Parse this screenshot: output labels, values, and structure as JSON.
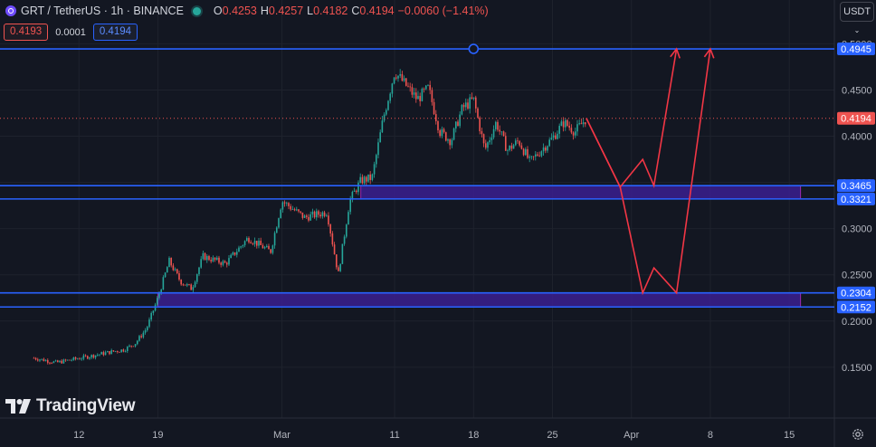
{
  "header": {
    "symbol": "GRT / TetherUS · 1h · BINANCE",
    "open_label": "O",
    "open": "0.4253",
    "high_label": "H",
    "high": "0.4257",
    "low_label": "L",
    "low": "0.4182",
    "close_label": "C",
    "close": "0.4194",
    "change": "−0.0060 (−1.41%)"
  },
  "trade": {
    "sell": "0.4193",
    "spread": "0.0001",
    "buy": "0.4194"
  },
  "currency_button": "USDT",
  "logo_text": "TradingView",
  "icons": {
    "symbol_logo": "grt-coin-icon",
    "market_status": "market-open-dot-icon",
    "currency": "chevron-down-icon",
    "settings": "gear-icon"
  },
  "colors": {
    "background": "#131722",
    "grid": "#1e222d",
    "up": "#26a69a",
    "down": "#ef5350",
    "level_line": "#2962ff",
    "zone_fill": "#3b1f8f",
    "projection": "#f23645",
    "price_line": "#ef5350"
  },
  "chart_data": {
    "type": "candlestick",
    "interval": "1h",
    "grid": true,
    "y_axis": {
      "ticks": [
        "0.5000",
        "0.4500",
        "0.4000",
        "0.3500",
        "0.3000",
        "0.2500",
        "0.2000",
        "0.1500"
      ],
      "tick_values": [
        0.5,
        0.45,
        0.4,
        0.35,
        0.3,
        0.25,
        0.2,
        0.15
      ],
      "range": [
        0.095,
        0.52
      ]
    },
    "x_axis": {
      "ticks": [
        "12",
        "19",
        "Mar",
        "11",
        "18",
        "25",
        "Apr",
        "8",
        "15"
      ],
      "dates": [
        "2024-02-12",
        "2024-02-19",
        "2024-03-01",
        "2024-03-11",
        "2024-03-18",
        "2024-03-25",
        "2024-04-01",
        "2024-04-08",
        "2024-04-15"
      ]
    },
    "price_path": [
      [
        "2024-02-08",
        0.16
      ],
      [
        "2024-02-10",
        0.155
      ],
      [
        "2024-02-13",
        0.162
      ],
      [
        "2024-02-15",
        0.167
      ],
      [
        "2024-02-16",
        0.169
      ],
      [
        "2024-02-17",
        0.176
      ],
      [
        "2024-02-18",
        0.192
      ],
      [
        "2024-02-19",
        0.225
      ],
      [
        "2024-02-20",
        0.265
      ],
      [
        "2024-02-21",
        0.243
      ],
      [
        "2024-02-22",
        0.235
      ],
      [
        "2024-02-23",
        0.27
      ],
      [
        "2024-02-25",
        0.262
      ],
      [
        "2024-02-27",
        0.29
      ],
      [
        "2024-02-29",
        0.275
      ],
      [
        "2024-03-01",
        0.33
      ],
      [
        "2024-03-03",
        0.312
      ],
      [
        "2024-03-05",
        0.318
      ],
      [
        "2024-03-06",
        0.25
      ],
      [
        "2024-03-07",
        0.33
      ],
      [
        "2024-03-08",
        0.352
      ],
      [
        "2024-03-09",
        0.355
      ],
      [
        "2024-03-10",
        0.42
      ],
      [
        "2024-03-11",
        0.47
      ],
      [
        "2024-03-12",
        0.455
      ],
      [
        "2024-03-13",
        0.44
      ],
      [
        "2024-03-14",
        0.452
      ],
      [
        "2024-03-15",
        0.405
      ],
      [
        "2024-03-16",
        0.395
      ],
      [
        "2024-03-17",
        0.43
      ],
      [
        "2024-03-18",
        0.44
      ],
      [
        "2024-03-19",
        0.385
      ],
      [
        "2024-03-20",
        0.415
      ],
      [
        "2024-03-21",
        0.385
      ],
      [
        "2024-03-22",
        0.395
      ],
      [
        "2024-03-23",
        0.372
      ],
      [
        "2024-03-24",
        0.385
      ],
      [
        "2024-03-25",
        0.398
      ],
      [
        "2024-03-26",
        0.415
      ],
      [
        "2024-03-27",
        0.405
      ],
      [
        "2024-03-28",
        0.4194
      ]
    ],
    "horizontal_levels": [
      0.4945,
      0.3465,
      0.3321,
      0.2304,
      0.2152
    ],
    "current_price": 0.4194,
    "zones": [
      {
        "from": "2024-03-08",
        "to": "2024-04-16",
        "top": 0.3465,
        "bottom": 0.3321
      },
      {
        "from": "2024-02-19",
        "to": "2024-04-16",
        "top": 0.2304,
        "bottom": 0.2152
      }
    ],
    "projection_paths": [
      [
        [
          "2024-03-28",
          0.4194
        ],
        [
          "2024-03-31",
          0.345
        ],
        [
          "2024-04-02",
          0.375
        ],
        [
          "2024-04-03",
          0.3465
        ],
        [
          "2024-04-05",
          0.4945
        ]
      ],
      [
        [
          "2024-03-28",
          0.4194
        ],
        [
          "2024-03-31",
          0.345
        ],
        [
          "2024-04-02",
          0.2304
        ],
        [
          "2024-04-03",
          0.2575
        ],
        [
          "2024-04-05",
          0.2304
        ],
        [
          "2024-04-08",
          0.4945
        ]
      ]
    ],
    "axis_labels": [
      "0.4945",
      "0.4194",
      "0.3465",
      "0.3321",
      "0.2304",
      "0.2152"
    ]
  }
}
